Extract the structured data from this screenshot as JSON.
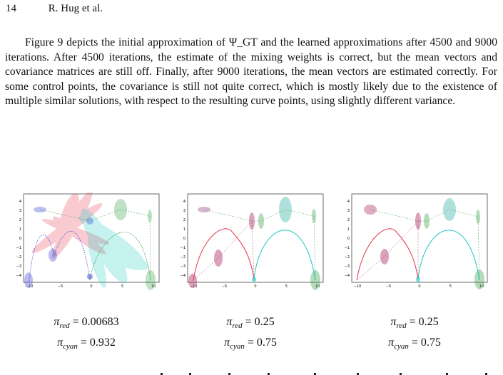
{
  "header": {
    "page_number": "14",
    "running_head": "R. Hug et al."
  },
  "body": {
    "paragraph": "Figure 9 depicts the initial approximation of Ψ_GT and the learned approximations after 4500 and 9000 iterations. After 4500 iterations, the estimate of the mixing weights is correct, but the mean vectors and covariance matrices are still off. Finally, after 9000 iterations, the mean vectors are estimated correctly. For some control points, the covariance is still not quite correct, which is mostly likely due to the existence of multiple similar solutions, with respect to the resulting curve points, using slightly different variance."
  },
  "colors": {
    "red": "#e8334a",
    "cyan": "#1ec8c0",
    "blue": "#3a46d8",
    "green": "#2a9a3a",
    "purple": "#8a2a7a"
  },
  "figure": {
    "panels": [
      {
        "x_ticks": [
          "−10",
          "−5",
          "0",
          "5",
          "10"
        ],
        "y_ticks": [
          "4",
          "3",
          "2",
          "1",
          "0",
          "−1",
          "−2",
          "−3",
          "−4"
        ],
        "caption": {
          "red_symbol": "π",
          "red_sub": "red",
          "red_value": "= 0.00683",
          "cyan_symbol": "π",
          "cyan_sub": "cyan",
          "cyan_value": "= 0.932"
        }
      },
      {
        "x_ticks": [
          "−10",
          "−5",
          "0",
          "5",
          "10"
        ],
        "y_ticks": [
          "4",
          "3",
          "2",
          "1",
          "0",
          "−1",
          "−2",
          "−3",
          "−4"
        ],
        "caption": {
          "red_symbol": "π",
          "red_sub": "red",
          "red_value": "= 0.25",
          "cyan_symbol": "π",
          "cyan_sub": "cyan",
          "cyan_value": "= 0.75"
        }
      },
      {
        "x_ticks": [
          "−10",
          "−5",
          "0",
          "5",
          "10"
        ],
        "y_ticks": [
          "4",
          "3",
          "2",
          "1",
          "0",
          "−1",
          "−2",
          "−3",
          "−4"
        ],
        "caption": {
          "red_symbol": "π",
          "red_sub": "red",
          "red_value": "= 0.25",
          "cyan_symbol": "π",
          "cyan_sub": "cyan",
          "cyan_value": "= 0.75"
        }
      }
    ]
  }
}
